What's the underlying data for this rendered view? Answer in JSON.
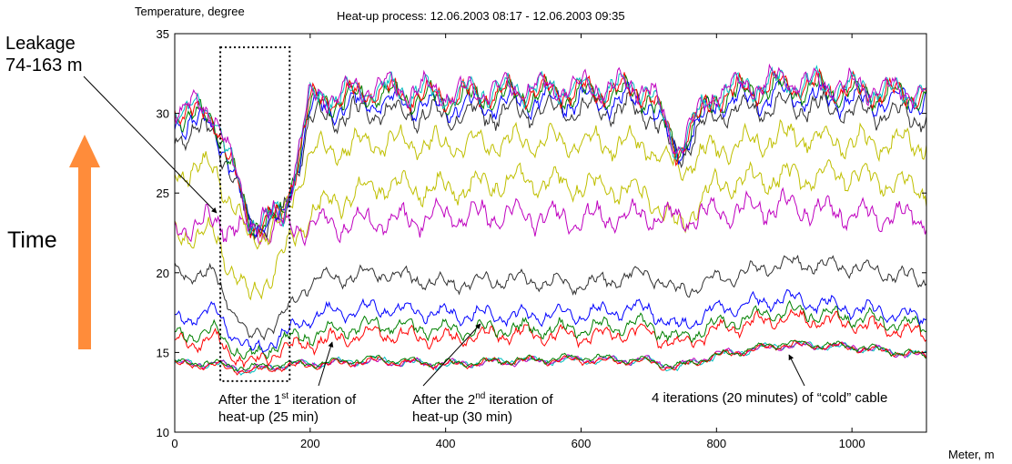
{
  "chart_data": {
    "type": "line",
    "title": "Heat-up process: 12.06.2003 08:17 - 12.06.2003 09:35",
    "xlabel": "Meter, m",
    "ylabel": "Temperature, degree",
    "xlim": [
      0,
      1110
    ],
    "ylim": [
      10,
      35
    ],
    "xticks": [
      "0",
      "200",
      "400",
      "600",
      "800",
      "1000"
    ],
    "yticks": [
      "10",
      "15",
      "20",
      "25",
      "30",
      "35"
    ],
    "grid": false,
    "legend": "none",
    "series": [
      {
        "color": "#00bfbf",
        "x": [
          0,
          60,
          110,
          160,
          200,
          300,
          400,
          500,
          600,
          700,
          740,
          800,
          900,
          1000,
          1110
        ],
        "values": [
          14.3,
          14.3,
          13.8,
          14.2,
          14.3,
          14.5,
          14.2,
          14.5,
          14.5,
          14.5,
          14.0,
          14.8,
          15.5,
          15.3,
          14.8
        ]
      },
      {
        "color": "#bf00bf",
        "x": [
          0,
          60,
          110,
          160,
          200,
          300,
          400,
          500,
          600,
          700,
          740,
          800,
          900,
          1000,
          1110
        ],
        "values": [
          14.3,
          14.3,
          13.9,
          14.2,
          14.3,
          14.4,
          14.3,
          14.4,
          14.6,
          14.5,
          14.1,
          14.9,
          15.4,
          15.4,
          14.7
        ]
      },
      {
        "color": "#ff0000",
        "x": [
          0,
          60,
          110,
          160,
          200,
          300,
          400,
          500,
          600,
          700,
          740,
          800,
          900,
          1000,
          1110
        ],
        "values": [
          14.2,
          14.2,
          13.8,
          14.1,
          14.2,
          14.5,
          14.2,
          14.5,
          14.5,
          14.4,
          14.0,
          14.8,
          15.5,
          15.3,
          14.8
        ]
      },
      {
        "color": "#008000",
        "x": [
          0,
          60,
          110,
          160,
          200,
          300,
          400,
          500,
          600,
          700,
          740,
          800,
          900,
          1000,
          1110
        ],
        "values": [
          14.4,
          14.3,
          14.0,
          14.3,
          14.3,
          14.6,
          14.3,
          14.5,
          14.7,
          14.5,
          14.1,
          14.8,
          15.6,
          15.4,
          14.8
        ]
      },
      {
        "color": "#ff0000",
        "x": [
          0,
          60,
          110,
          160,
          200,
          300,
          400,
          500,
          600,
          700,
          740,
          800,
          900,
          1000,
          1110
        ],
        "values": [
          15.6,
          15.8,
          14.2,
          15.2,
          15.6,
          16.2,
          15.8,
          16.2,
          16.0,
          16.3,
          15.4,
          16.4,
          17.2,
          16.8,
          16.1
        ]
      },
      {
        "color": "#008000",
        "x": [
          0,
          60,
          110,
          160,
          200,
          300,
          400,
          500,
          600,
          700,
          740,
          800,
          900,
          1000,
          1110
        ],
        "values": [
          16.0,
          16.3,
          14.6,
          15.8,
          16.1,
          16.8,
          16.4,
          16.5,
          16.5,
          16.8,
          15.8,
          16.8,
          17.6,
          17.2,
          16.6
        ]
      },
      {
        "color": "#0000ff",
        "x": [
          0,
          60,
          110,
          160,
          200,
          300,
          400,
          500,
          600,
          700,
          740,
          800,
          900,
          1000,
          1110
        ],
        "values": [
          17.0,
          17.6,
          15.0,
          16.0,
          17.3,
          17.8,
          17.4,
          17.3,
          17.4,
          17.8,
          16.5,
          17.7,
          18.4,
          17.8,
          17.2
        ]
      },
      {
        "color": "#303030",
        "x": [
          0,
          60,
          110,
          160,
          200,
          300,
          400,
          500,
          600,
          700,
          740,
          800,
          900,
          1000,
          1110
        ],
        "values": [
          20.0,
          19.8,
          15.8,
          17.2,
          19.5,
          20.0,
          19.3,
          19.6,
          19.2,
          20.0,
          18.8,
          19.6,
          20.6,
          20.4,
          19.5
        ]
      },
      {
        "color": "#bfbf00",
        "x": [
          0,
          60,
          110,
          160,
          200,
          300,
          400,
          500,
          600,
          700,
          740,
          800,
          900,
          1000,
          1110
        ],
        "values": [
          22.5,
          22.3,
          18.2,
          21.0,
          23.8,
          25.5,
          25.2,
          25.8,
          25.5,
          25.0,
          22.8,
          25.5,
          26.0,
          26.2,
          25.2
        ]
      },
      {
        "color": "#bf00bf",
        "x": [
          0,
          60,
          110,
          160,
          200,
          300,
          400,
          500,
          600,
          700,
          740,
          800,
          900,
          1000,
          1110
        ],
        "values": [
          22.8,
          23.2,
          22.6,
          22.8,
          23.0,
          23.2,
          23.6,
          23.6,
          23.4,
          23.6,
          23.3,
          23.8,
          24.2,
          23.7,
          23.5
        ]
      },
      {
        "color": "#bfbf00",
        "x": [
          0,
          60,
          110,
          160,
          200,
          300,
          400,
          500,
          600,
          700,
          740,
          800,
          900,
          1000,
          1110
        ],
        "values": [
          26.5,
          26.5,
          22.0,
          23.2,
          27.6,
          28.2,
          28.0,
          28.2,
          28.2,
          28.0,
          26.5,
          27.8,
          28.6,
          28.2,
          28.2
        ]
      },
      {
        "color": "#303030",
        "x": [
          0,
          60,
          110,
          160,
          200,
          300,
          400,
          500,
          600,
          700,
          740,
          800,
          900,
          1000,
          1110
        ],
        "values": [
          28.7,
          28.8,
          23.0,
          23.3,
          29.6,
          30.2,
          29.8,
          30.1,
          30.2,
          30.2,
          27.3,
          30.0,
          30.6,
          30.2,
          29.8
        ]
      },
      {
        "color": "#0000ff",
        "x": [
          0,
          60,
          110,
          160,
          200,
          300,
          400,
          500,
          600,
          700,
          740,
          800,
          900,
          1000,
          1110
        ],
        "values": [
          29.5,
          29.2,
          23.1,
          23.3,
          30.2,
          30.8,
          30.4,
          30.7,
          30.8,
          30.8,
          27.5,
          30.6,
          31.2,
          30.8,
          30.8
        ]
      },
      {
        "color": "#008000",
        "x": [
          0,
          60,
          110,
          160,
          200,
          300,
          400,
          500,
          600,
          700,
          740,
          800,
          900,
          1000,
          1110
        ],
        "values": [
          30.0,
          29.6,
          23.2,
          23.4,
          30.5,
          31.2,
          30.8,
          31.1,
          31.2,
          31.2,
          27.6,
          31.0,
          31.6,
          31.2,
          31.1
        ]
      },
      {
        "color": "#ff0000",
        "x": [
          0,
          60,
          110,
          160,
          200,
          300,
          400,
          500,
          600,
          700,
          740,
          800,
          900,
          1000,
          1110
        ],
        "values": [
          30.2,
          29.8,
          23.2,
          23.4,
          30.7,
          31.4,
          31.0,
          31.3,
          31.4,
          31.4,
          27.7,
          31.2,
          31.8,
          31.4,
          31.2
        ]
      },
      {
        "color": "#00bfbf",
        "x": [
          0,
          60,
          110,
          160,
          200,
          300,
          400,
          500,
          600,
          700,
          740,
          800,
          900,
          1000,
          1110
        ],
        "values": [
          30.4,
          30.0,
          23.3,
          23.5,
          30.9,
          31.6,
          31.2,
          31.5,
          31.6,
          31.6,
          27.8,
          31.4,
          32.0,
          31.6,
          31.3
        ]
      },
      {
        "color": "#bf00bf",
        "x": [
          0,
          60,
          110,
          160,
          200,
          300,
          400,
          500,
          600,
          700,
          740,
          800,
          900,
          1000,
          1110
        ],
        "values": [
          30.5,
          30.1,
          23.3,
          23.5,
          31.0,
          31.7,
          31.3,
          31.6,
          31.7,
          31.7,
          27.8,
          31.5,
          32.1,
          31.7,
          31.4
        ]
      }
    ],
    "annotations": {
      "leak_line1": "Leakage",
      "leak_line2": "74-163 m",
      "time": "Time",
      "iter1_pre": "After the 1",
      "iter1_sup": "st",
      "iter1_post": " iteration of",
      "iter1_line2": "heat-up (25 min)",
      "iter2_pre": "After the 2",
      "iter2_sup": "nd",
      "iter2_post": " iteration of",
      "iter2_line2": "heat-up (30 min)",
      "iter3": "4 iterations (20 minutes) of “cold” cable"
    },
    "leak_region": [
      74,
      163
    ],
    "arrow_color": "#ff8c3a"
  }
}
